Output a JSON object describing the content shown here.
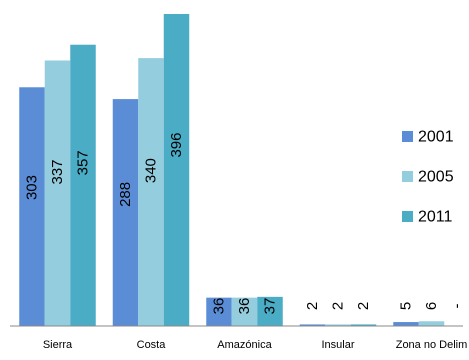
{
  "chart_data": {
    "type": "bar",
    "categories": [
      "Sierra",
      "Costa",
      "Amazónica",
      "Insular",
      "Zona no Delim"
    ],
    "series": [
      {
        "name": "2001",
        "values": [
          303,
          288,
          36,
          2,
          5
        ],
        "labels": [
          "303",
          "288",
          "36",
          "2",
          "5"
        ],
        "color": "#5B8DD6"
      },
      {
        "name": "2005",
        "values": [
          337,
          340,
          36,
          2,
          6
        ],
        "labels": [
          "337",
          "340",
          "36",
          "2",
          "6"
        ],
        "color": "#94CDDE"
      },
      {
        "name": "2011",
        "values": [
          357,
          396,
          37,
          2,
          0
        ],
        "labels": [
          "357",
          "396",
          "37",
          "2",
          "-"
        ],
        "color": "#4BACC6"
      }
    ],
    "ylim": [
      0,
      396
    ],
    "grid": false,
    "legend_position": "right",
    "data_labels": "inside-rotated"
  }
}
